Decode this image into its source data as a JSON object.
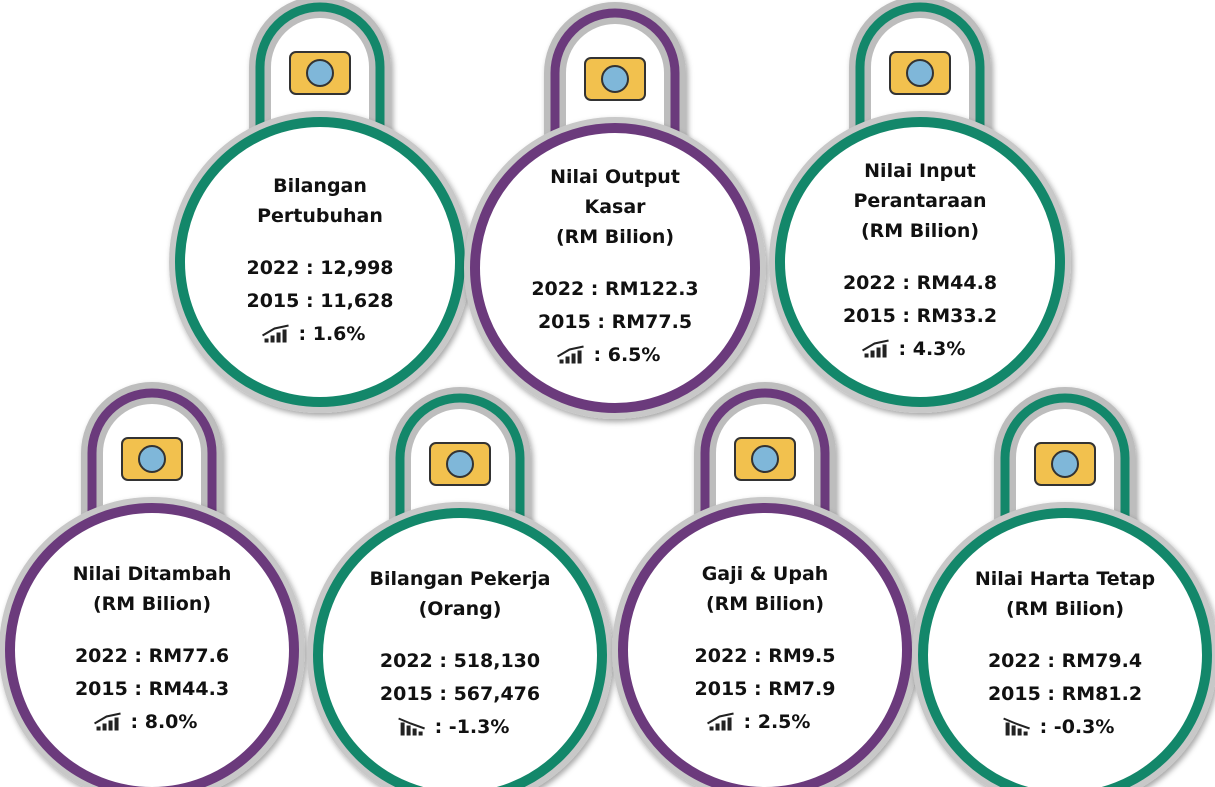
{
  "cards": [
    {
      "title": [
        "Bilangan",
        "Pertubuhan"
      ],
      "year2022": "2022 : 12,998",
      "year2015": "2015 : 11,628",
      "growth": ": 1.6%",
      "trend": "up",
      "ring": "#13876a",
      "tab": "#13876a"
    },
    {
      "title": [
        "Nilai Output",
        "Kasar",
        "(RM Bilion)"
      ],
      "year2022": "2022 : RM122.3",
      "year2015": "2015 : RM77.5",
      "growth": ": 6.5%",
      "trend": "up",
      "ring": "#6b3a7c",
      "tab": "#6b3a7c"
    },
    {
      "title": [
        "Nilai Input",
        "Perantaraan",
        "(RM Bilion)"
      ],
      "year2022": "2022 : RM44.8",
      "year2015": "2015 : RM33.2",
      "growth": ": 4.3%",
      "trend": "up",
      "ring": "#13876a",
      "tab": "#13876a"
    },
    {
      "title": [
        "Nilai Ditambah",
        "(RM Bilion)"
      ],
      "year2022": "2022 : RM77.6",
      "year2015": "2015 : RM44.3",
      "growth": ": 8.0%",
      "trend": "up",
      "ring": "#6b3a7c",
      "tab": "#6b3a7c"
    },
    {
      "title": [
        "Bilangan Pekerja",
        "(Orang)"
      ],
      "year2022": "2022 : 518,130",
      "year2015": "2015 : 567,476",
      "growth": ": -1.3%",
      "trend": "down",
      "ring": "#13876a",
      "tab": "#13876a"
    },
    {
      "title": [
        "Gaji & Upah",
        "(RM Bilion)"
      ],
      "year2022": "2022 : RM9.5",
      "year2015": "2015 : RM7.9",
      "growth": ": 2.5%",
      "trend": "up",
      "ring": "#6b3a7c",
      "tab": "#6b3a7c"
    },
    {
      "title": [
        "Nilai Harta Tetap",
        "(RM Bilion)"
      ],
      "year2022": "2022 : RM79.4",
      "year2015": "2015 : RM81.2",
      "growth": ": -0.3%",
      "trend": "down",
      "ring": "#13876a",
      "tab": "#13876a"
    }
  ]
}
